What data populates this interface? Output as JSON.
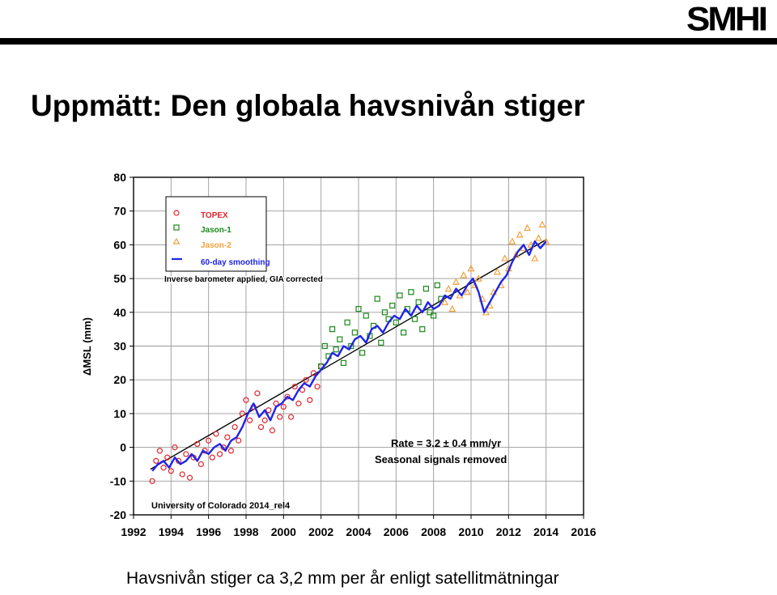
{
  "logo": {
    "text": "SMHI"
  },
  "slide": {
    "title": "Uppmätt: Den globala havsnivån stiger",
    "caption": "Havsnivån stiger ca 3,2 mm per år enligt satellitmätningar"
  },
  "chart_data": {
    "type": "scatter",
    "xlabel": "",
    "ylabel": "ΔMSL (mm)",
    "xlim": [
      1992,
      2016
    ],
    "ylim": [
      -20,
      80
    ],
    "xticks": [
      1992,
      1994,
      1996,
      1998,
      2000,
      2002,
      2004,
      2006,
      2008,
      2010,
      2012,
      2014,
      2016
    ],
    "yticks": [
      -20,
      -10,
      0,
      10,
      20,
      30,
      40,
      50,
      60,
      70,
      80
    ],
    "grid": true,
    "legend_position": "top-left",
    "legend_note": "Inverse barometer applied, GIA corrected",
    "annotations": {
      "rate": "Rate = 3.2 ± 0.4 mm/yr",
      "seasonal": "Seasonal signals removed",
      "source": "University of Colorado 2014_rel4"
    },
    "colors": {
      "topex": "#e0242b",
      "jason1": "#1a8a1a",
      "jason2": "#f4a03c",
      "smooth": "#1f24e6",
      "trend": "#000000"
    },
    "trend": {
      "x": [
        1992.9,
        2014.0
      ],
      "y": [
        -6.5,
        61.5
      ]
    },
    "series": [
      {
        "name": "TOPEX",
        "marker": "circle",
        "x": [
          1993.0,
          1993.2,
          1993.4,
          1993.6,
          1993.8,
          1994.0,
          1994.2,
          1994.4,
          1994.6,
          1994.8,
          1995.0,
          1995.2,
          1995.4,
          1995.6,
          1995.8,
          1996.0,
          1996.2,
          1996.4,
          1996.6,
          1996.8,
          1997.0,
          1997.2,
          1997.4,
          1997.6,
          1997.8,
          1998.0,
          1998.2,
          1998.4,
          1998.6,
          1998.8,
          1999.0,
          1999.2,
          1999.4,
          1999.6,
          1999.8,
          2000.0,
          2000.2,
          2000.4,
          2000.6,
          2000.8,
          2001.0,
          2001.2,
          2001.4,
          2001.6,
          2001.8,
          2002.0
        ],
        "y": [
          -10,
          -4,
          -1,
          -6,
          -3,
          -7,
          0,
          -4,
          -8,
          -2,
          -9,
          -3,
          1,
          -5,
          -1,
          2,
          -3,
          4,
          -2,
          0,
          3,
          -1,
          6,
          2,
          10,
          14,
          8,
          12,
          16,
          6,
          8,
          11,
          5,
          13,
          9,
          12,
          15,
          9,
          18,
          13,
          17,
          20,
          14,
          22,
          18,
          24
        ]
      },
      {
        "name": "Jason-1",
        "marker": "square",
        "x": [
          2002.0,
          2002.2,
          2002.4,
          2002.6,
          2002.8,
          2003.0,
          2003.2,
          2003.4,
          2003.6,
          2003.8,
          2004.0,
          2004.2,
          2004.4,
          2004.6,
          2004.8,
          2005.0,
          2005.2,
          2005.4,
          2005.6,
          2005.8,
          2006.0,
          2006.2,
          2006.4,
          2006.6,
          2006.8,
          2007.0,
          2007.2,
          2007.4,
          2007.6,
          2007.8,
          2008.0,
          2008.2,
          2008.4
        ],
        "y": [
          24,
          30,
          27,
          35,
          29,
          32,
          25,
          37,
          30,
          34,
          41,
          28,
          39,
          33,
          36,
          44,
          31,
          40,
          38,
          42,
          37,
          45,
          34,
          41,
          46,
          38,
          43,
          35,
          47,
          40,
          39,
          48,
          44
        ]
      },
      {
        "name": "Jason-2",
        "marker": "triangle",
        "x": [
          2008.6,
          2008.8,
          2009.0,
          2009.2,
          2009.4,
          2009.6,
          2009.8,
          2010.0,
          2010.2,
          2010.4,
          2010.6,
          2010.8,
          2011.0,
          2011.2,
          2011.4,
          2011.6,
          2011.8,
          2012.0,
          2012.2,
          2012.4,
          2012.6,
          2012.8,
          2013.0,
          2013.2,
          2013.4,
          2013.6,
          2013.8,
          2014.0
        ],
        "y": [
          43,
          47,
          41,
          49,
          45,
          51,
          46,
          53,
          48,
          50,
          44,
          40,
          42,
          46,
          52,
          48,
          56,
          53,
          61,
          57,
          63,
          59,
          65,
          60,
          56,
          62,
          66,
          61
        ]
      },
      {
        "name": "60-day smoothing",
        "marker": "line",
        "x": [
          1993.0,
          1993.3,
          1993.6,
          1993.9,
          1994.2,
          1994.5,
          1994.8,
          1995.1,
          1995.4,
          1995.7,
          1996.0,
          1996.3,
          1996.6,
          1996.9,
          1997.2,
          1997.5,
          1997.8,
          1998.1,
          1998.4,
          1998.7,
          1999.0,
          1999.3,
          1999.6,
          1999.9,
          2000.2,
          2000.5,
          2000.8,
          2001.1,
          2001.4,
          2001.7,
          2002.0,
          2002.3,
          2002.6,
          2002.9,
          2003.2,
          2003.5,
          2003.8,
          2004.1,
          2004.4,
          2004.7,
          2005.0,
          2005.3,
          2005.6,
          2005.9,
          2006.2,
          2006.5,
          2006.8,
          2007.1,
          2007.4,
          2007.7,
          2008.0,
          2008.3,
          2008.6,
          2008.9,
          2009.2,
          2009.5,
          2009.8,
          2010.1,
          2010.4,
          2010.7,
          2011.0,
          2011.3,
          2011.6,
          2011.9,
          2012.2,
          2012.5,
          2012.8,
          2013.1,
          2013.4,
          2013.7,
          2014.0
        ],
        "y": [
          -7,
          -5,
          -4,
          -6,
          -3,
          -5,
          -4,
          -2,
          -4,
          -1,
          -2,
          0,
          1,
          -1,
          2,
          3,
          6,
          10,
          13,
          9,
          11,
          8,
          12,
          13,
          15,
          14,
          17,
          19,
          18,
          21,
          23,
          25,
          28,
          27,
          30,
          29,
          32,
          33,
          31,
          35,
          36,
          34,
          37,
          39,
          38,
          41,
          39,
          42,
          40,
          43,
          41,
          42,
          45,
          44,
          47,
          45,
          48,
          50,
          46,
          40,
          43,
          46,
          49,
          51,
          55,
          58,
          60,
          57,
          61,
          59,
          61
        ]
      }
    ]
  }
}
